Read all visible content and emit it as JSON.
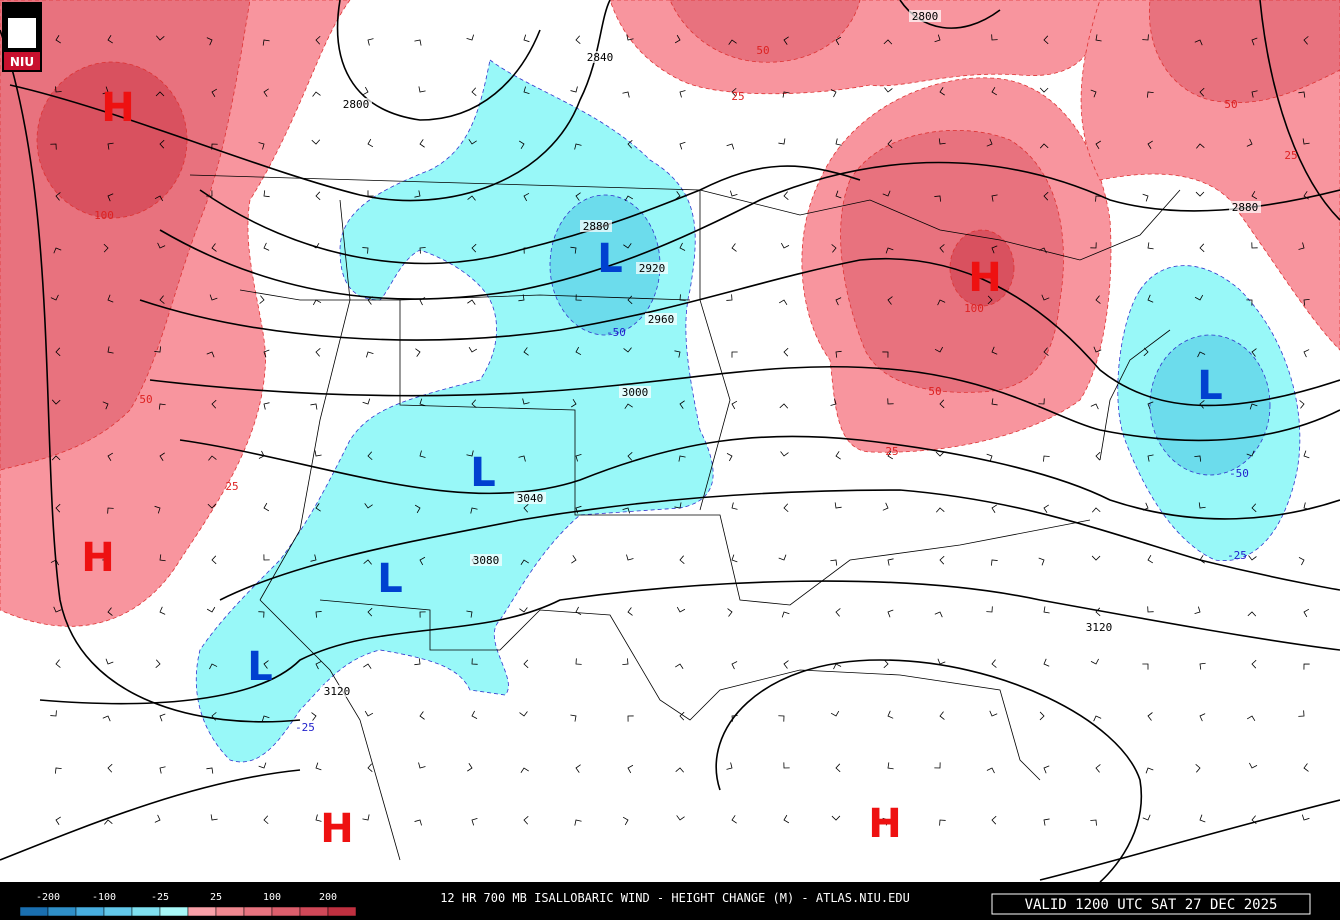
{
  "logo": "NIU",
  "title": "12 HR 700 MB ISALLOBARIC WIND - HEIGHT CHANGE (M) - ATLAS.NIU.EDU",
  "valid": "VALID 1200 UTC SAT 27 DEC 2025",
  "legend": {
    "labels": [
      "-200",
      "-100",
      "-25",
      "25",
      "100",
      "200"
    ],
    "colors": [
      "#1a6fb0",
      "#2f8fc8",
      "#48aee0",
      "#62c8ea",
      "#7fe0f0",
      "#a8f8f8",
      "#f8a0a8",
      "#f08890",
      "#e87480",
      "#dc5e6c",
      "#d04858",
      "#c03040"
    ]
  },
  "centers": [
    "H",
    "H",
    "H",
    "H",
    "H",
    "L",
    "L",
    "L",
    "L",
    "L"
  ],
  "height_labels": [
    "2800",
    "2840",
    "2880",
    "2920",
    "2960",
    "3000",
    "3040",
    "3080",
    "3120",
    "3120",
    "2800",
    "2880"
  ],
  "change_labels": [
    "100",
    "50",
    "25",
    "50",
    "25",
    "-50",
    "100",
    "50",
    "25",
    "50",
    "25",
    "-50",
    "-25",
    "-25"
  ]
}
